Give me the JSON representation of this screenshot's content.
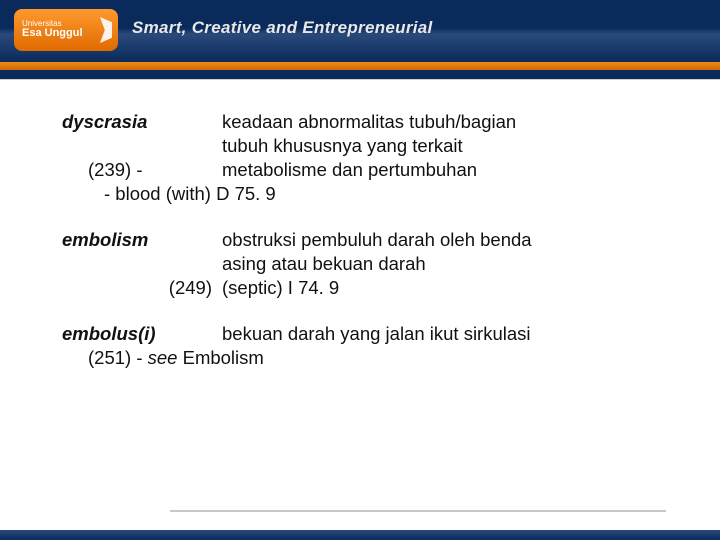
{
  "brand": {
    "university_line1": "Universitas",
    "university_line2": "Esa Unggul",
    "tagline": "Smart, Creative and Entrepreneurial"
  },
  "entries": [
    {
      "term": "dyscrasia",
      "def_l1": "keadaan abnormalitas tubuh/bagian",
      "def_l2": "tubuh khususnya yang terkait",
      "code_label": "(239) -",
      "def_l3": "metabolisme dan pertumbuhan",
      "sub": "-  blood (with)  D 75. 9"
    },
    {
      "term": "embolism",
      "def_l1": "obstruksi pembuluh darah oleh benda",
      "def_l2": "asing atau bekuan darah",
      "code_label": "(249)",
      "def_l3": "(septic)  I 74. 9"
    },
    {
      "term": "embolus(i)",
      "def_l1": "bekuan darah yang jalan ikut sirkulasi",
      "code_label": "(251) - ",
      "see_word": "see",
      "see_target": " Embolism"
    }
  ],
  "colors": {
    "navy": "#0a2a5c",
    "orange": "#e87800",
    "text": "#111111",
    "rule": "#c8c8c8"
  }
}
